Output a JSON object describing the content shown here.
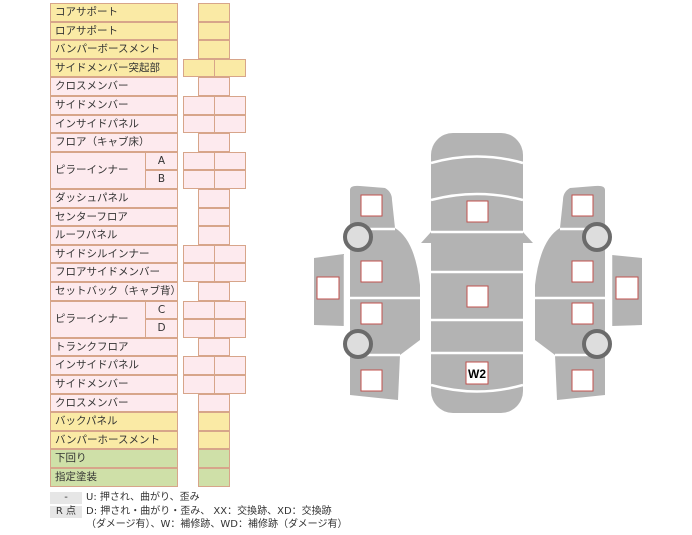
{
  "rows": [
    {
      "label": "コアサポート",
      "color": "y",
      "cells": 1
    },
    {
      "label": "ロアサポート",
      "color": "y",
      "cells": 1
    },
    {
      "label": "バンパーボースメント",
      "color": "y",
      "cells": 1
    },
    {
      "label": "サイドメンバー突起部",
      "color": "y",
      "cells": 2
    },
    {
      "label": "クロスメンバー",
      "color": "p",
      "cells": 1
    },
    {
      "label": "サイドメンバー",
      "color": "p",
      "cells": 2
    },
    {
      "label": "インサイドパネル",
      "color": "p",
      "cells": 2
    },
    {
      "label": "フロア（キャブ床）",
      "color": "p",
      "cells": 1
    },
    {
      "label": "ピラーインナー",
      "color": "p",
      "cells": 2,
      "subs": [
        "A",
        "B"
      ]
    },
    {
      "label": "ダッシュパネル",
      "color": "p",
      "cells": 1
    },
    {
      "label": "センターフロア",
      "color": "p",
      "cells": 1
    },
    {
      "label": "ルーフパネル",
      "color": "p",
      "cells": 1
    },
    {
      "label": "サイドシルインナー",
      "color": "p",
      "cells": 2
    },
    {
      "label": "フロアサイドメンバー",
      "color": "p",
      "cells": 2
    },
    {
      "label": "セットバック（キャブ背）",
      "color": "p",
      "cells": 1
    },
    {
      "label": "ピラーインナー",
      "color": "p",
      "cells": 2,
      "subs": [
        "C",
        "D"
      ]
    },
    {
      "label": "トランクフロア",
      "color": "p",
      "cells": 1
    },
    {
      "label": "インサイドパネル",
      "color": "p",
      "cells": 2
    },
    {
      "label": "サイドメンバー",
      "color": "p",
      "cells": 2
    },
    {
      "label": "クロスメンバー",
      "color": "p",
      "cells": 1
    },
    {
      "label": "バックパネル",
      "color": "y",
      "cells": 1
    },
    {
      "label": "バンパーホースメント",
      "color": "y",
      "cells": 1
    },
    {
      "label": "下回り",
      "color": "g",
      "cells": 1
    },
    {
      "label": "指定塗装",
      "color": "g",
      "cells": 1
    }
  ],
  "diagram": {
    "marks": [
      {
        "label": "W2"
      }
    ]
  },
  "legend": {
    "dash": "-",
    "dash_text": "U: 押され、曲がり、歪み",
    "r_label": "R 点",
    "r_text1": "D: 押され・曲がり・歪み、 XX：交換跡、XD：交換跡",
    "r_text2": "（ダメージ有）、W：補修跡、WD：補修跡（ダメージ有）"
  }
}
